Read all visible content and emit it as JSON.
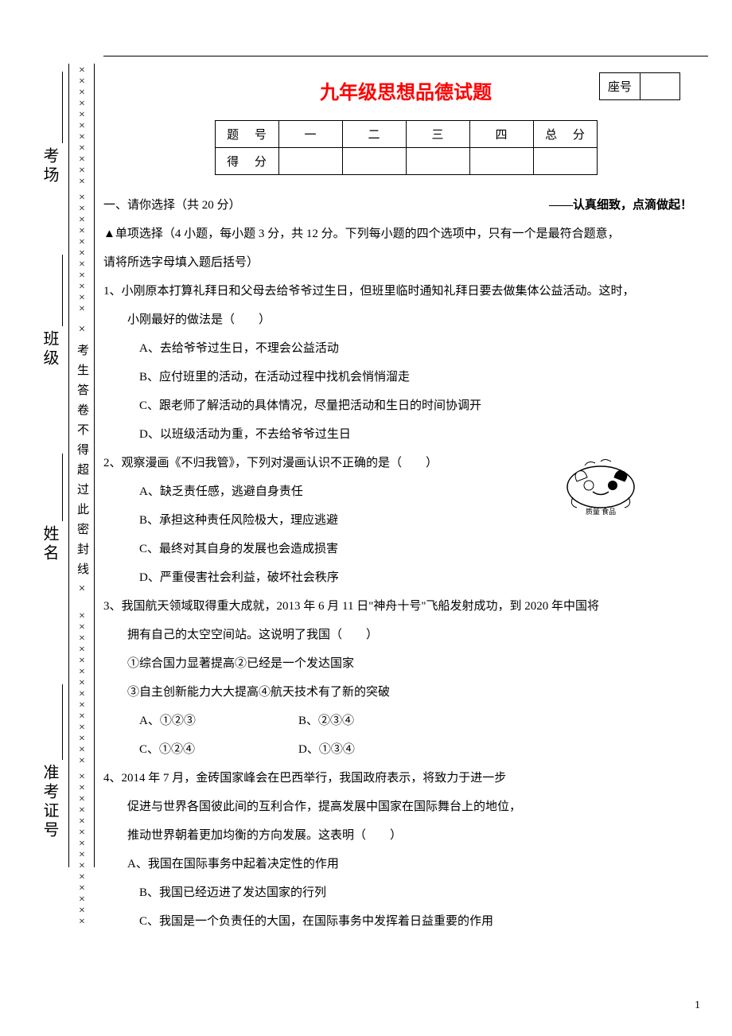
{
  "title": "九年级思想品德试题",
  "title_color": "#ff0000",
  "seat_label": "座号",
  "score_table": {
    "row1": [
      "题 号",
      "一",
      "二",
      "三",
      "四",
      "总 分"
    ],
    "row2": [
      "得 分",
      "",
      "",
      "",
      "",
      ""
    ]
  },
  "side": {
    "kaochang": "考场",
    "banji": "班级",
    "xingming": "姓名",
    "zhunkao": "准考证号"
  },
  "seal_text": "×考生答卷不得超过此密封线×",
  "x_char": "×",
  "section1": {
    "left": "一、请你选择（共 20 分）",
    "right": "——认真细致，点滴做起！"
  },
  "mc_intro": "▲单项选择（4 小题，每小题 3 分，共 12 分。下列每小题的四个选项中，只有一个是最符合题意，",
  "mc_intro2": "请将所选字母填入题后括号）",
  "q1": {
    "stem": "1、小刚原本打算礼拜日和父母去给爷爷过生日，但班里临时通知礼拜日要去做集体公益活动。这时，",
    "stem2": "小刚最好的做法是（　　）",
    "A": "A、去给爷爷过生日，不理会公益活动",
    "B": "B、应付班里的活动，在活动过程中找机会悄悄溜走",
    "C": "C、跟老师了解活动的具体情况，尽量把活动和生日的时间协调开",
    "D": "D、以班级活动为重，不去给爷爷过生日"
  },
  "q2": {
    "stem": "2、观察漫画《不归我管》，下列对漫画认识不正确的是（　　）",
    "A": "A、缺乏责任感，逃避自身责任",
    "B": "B、承担这种责任风险极大，理应逃避",
    "C": "C、最终对其自身的发展也会造成损害",
    "D": "D、严重侵害社会利益，破坏社会秩序",
    "cartoon_caption": "质量 食品"
  },
  "q3": {
    "stem": "3、我国航天领域取得重大成就，2013 年 6 月 11 日\"神舟十号\"飞船发射成功，到 2020 年中国将",
    "stem2": "拥有自己的太空空间站。这说明了我国（　　）",
    "opts1": "①综合国力显著提高②已经是一个发达国家",
    "opts2": "③自主创新能力大大提高④航天技术有了新的突破",
    "A": "A、①②③",
    "B": "B、②③④",
    "C": "C、①②④",
    "D": "D、①③④"
  },
  "q4": {
    "stem": "4、2014 年 7 月，金砖国家峰会在巴西举行，我国政府表示，将致力于进一步",
    "stem2": "促进与世界各国彼此间的互利合作，提高发展中国家在国际舞台上的地位，",
    "stem3": "推动世界朝着更加均衡的方向发展。这表明（　　）",
    "A": "A、我国在国际事务中起着决定性的作用",
    "B": "B、我国已经迈进了发达国家的行列",
    "C": "C、我国是一个负责任的大国，在国际事务中发挥着日益重要的作用"
  },
  "page_number": "1"
}
